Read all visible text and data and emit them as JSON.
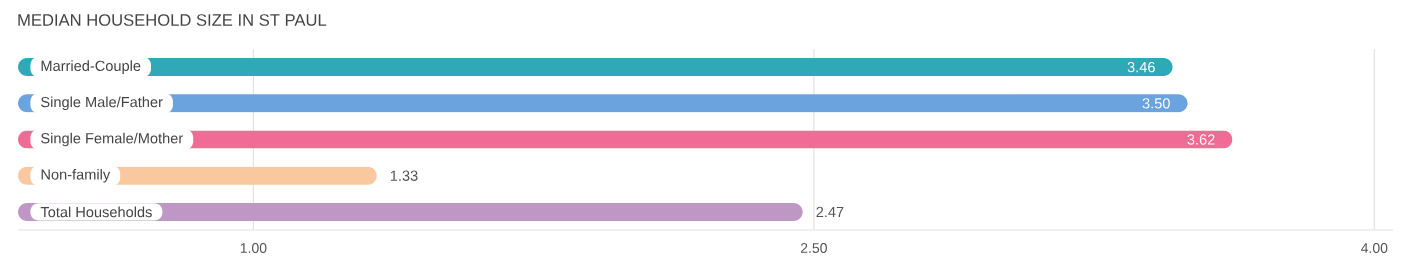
{
  "chart_data": {
    "type": "bar",
    "orientation": "horizontal",
    "title": "MEDIAN HOUSEHOLD SIZE IN ST PAUL",
    "categories": [
      "Married-Couple",
      "Single Male/Father",
      "Single Female/Mother",
      "Non-family",
      "Total Households"
    ],
    "values": [
      3.46,
      3.5,
      3.62,
      1.33,
      2.47
    ],
    "value_labels": [
      "3.46",
      "3.50",
      "3.62",
      "1.33",
      "2.47"
    ],
    "colors": [
      "#2fa8b8",
      "#6aa3de",
      "#f06b95",
      "#f9c89e",
      "#bf97c4"
    ],
    "xlim": [
      0.37,
      4.05
    ],
    "xticks": [
      {
        "value": 1,
        "label": "1.00"
      },
      {
        "value": 2.5,
        "label": "2.50"
      },
      {
        "value": 4,
        "label": "4.00"
      }
    ],
    "grid": "x"
  }
}
